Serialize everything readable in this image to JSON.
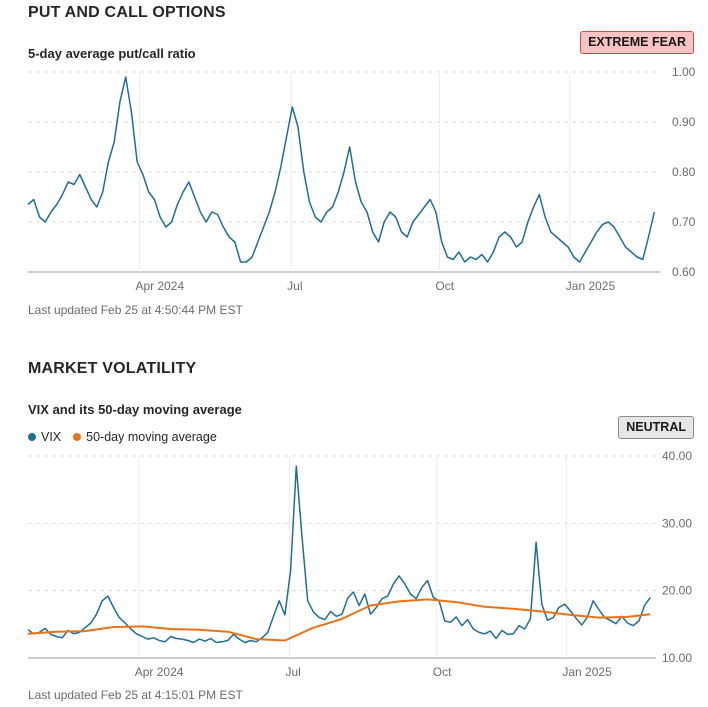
{
  "put_call": {
    "section_title": "PUT AND CALL OPTIONS",
    "subtitle": "5-day average put/call ratio",
    "badge": "EXTREME FEAR",
    "updated": "Last updated Feb 25 at 4:50:44 PM EST"
  },
  "volatility": {
    "section_title": "MARKET VOLATILITY",
    "subtitle": "VIX and its 50-day moving average",
    "badge": "NEUTRAL",
    "legend": {
      "vix": "VIX",
      "ma": "50-day moving average"
    },
    "updated": "Last updated Feb 25 at 4:15:01 PM EST"
  },
  "colors": {
    "vix": "#1f6e94",
    "ma": "#ec7217",
    "fear": "#f8c3c3",
    "neutral": "#e6e6e6"
  },
  "chart_data": [
    {
      "type": "line",
      "title": "5-day average put/call ratio",
      "x_tick_labels": [
        "Apr 2024",
        "Jul",
        "Oct",
        "Jan 2025"
      ],
      "x_tick_pos": [
        19.4,
        45.8,
        71.6,
        94.3
      ],
      "y_ticks": [
        "0.60",
        "0.70",
        "0.80",
        "0.90",
        "1.00"
      ],
      "ylim": [
        0.6,
        1.0
      ],
      "xlim": [
        0,
        110
      ],
      "series": [
        {
          "name": "5-day average put/call ratio",
          "color": "#1f6e94",
          "x": [
            0,
            1,
            2,
            3,
            4,
            5,
            6,
            7,
            8,
            9,
            10,
            11,
            12,
            13,
            14,
            15,
            16,
            17,
            18,
            19,
            20,
            21,
            22,
            23,
            24,
            25,
            26,
            27,
            28,
            29,
            30,
            31,
            32,
            33,
            34,
            35,
            36,
            37,
            38,
            39,
            40,
            41,
            42,
            43,
            44,
            45,
            46,
            47,
            48,
            49,
            50,
            51,
            52,
            53,
            54,
            55,
            56,
            57,
            58,
            59,
            60,
            61,
            62,
            63,
            64,
            65,
            66,
            67,
            68,
            69,
            70,
            71,
            72,
            73,
            74,
            75,
            76,
            77,
            78,
            79,
            80,
            81,
            82,
            83,
            84,
            85,
            86,
            87,
            88,
            89,
            90,
            91,
            92,
            93,
            94,
            95,
            96,
            97,
            98,
            99,
            100,
            101,
            102,
            103,
            104,
            105,
            106,
            107,
            108,
            109
          ],
          "y": [
            0.735,
            0.745,
            0.71,
            0.7,
            0.72,
            0.735,
            0.755,
            0.78,
            0.775,
            0.795,
            0.77,
            0.745,
            0.73,
            0.76,
            0.82,
            0.86,
            0.94,
            0.99,
            0.92,
            0.82,
            0.795,
            0.76,
            0.745,
            0.71,
            0.69,
            0.7,
            0.735,
            0.76,
            0.78,
            0.75,
            0.72,
            0.7,
            0.72,
            0.715,
            0.69,
            0.67,
            0.66,
            0.62,
            0.62,
            0.63,
            0.66,
            0.69,
            0.72,
            0.76,
            0.81,
            0.87,
            0.93,
            0.89,
            0.8,
            0.74,
            0.71,
            0.7,
            0.72,
            0.73,
            0.76,
            0.8,
            0.85,
            0.78,
            0.74,
            0.72,
            0.68,
            0.66,
            0.7,
            0.72,
            0.71,
            0.68,
            0.67,
            0.7,
            0.715,
            0.73,
            0.745,
            0.72,
            0.66,
            0.63,
            0.625,
            0.64,
            0.62,
            0.63,
            0.625,
            0.635,
            0.62,
            0.64,
            0.67,
            0.68,
            0.67,
            0.65,
            0.66,
            0.7,
            0.73,
            0.755,
            0.71,
            0.68,
            0.67,
            0.66,
            0.65,
            0.63,
            0.62,
            0.64,
            0.66,
            0.68,
            0.695,
            0.7,
            0.69,
            0.67,
            0.65,
            0.64,
            0.63,
            0.625,
            0.67,
            0.72
          ]
        }
      ]
    },
    {
      "type": "line",
      "title": "VIX and its 50-day moving average",
      "x_tick_labels": [
        "Apr 2024",
        "Jul",
        "Oct",
        "Jan 2025"
      ],
      "x_tick_pos": [
        19.4,
        45.8,
        71.6,
        94.3
      ],
      "y_ticks": [
        "10.00",
        "20.00",
        "30.00",
        "40.00"
      ],
      "ylim": [
        10,
        40
      ],
      "xlim": [
        0,
        110
      ],
      "series": [
        {
          "name": "VIX",
          "color": "#1f6e94",
          "x": [
            0,
            1,
            2,
            3,
            4,
            5,
            6,
            7,
            8,
            9,
            10,
            11,
            12,
            13,
            14,
            15,
            16,
            17,
            18,
            19,
            20,
            21,
            22,
            23,
            24,
            25,
            26,
            27,
            28,
            29,
            30,
            31,
            32,
            33,
            34,
            35,
            36,
            37,
            38,
            39,
            40,
            41,
            42,
            43,
            44,
            45,
            46,
            47,
            48,
            49,
            50,
            51,
            52,
            53,
            54,
            55,
            56,
            57,
            58,
            59,
            60,
            61,
            62,
            63,
            64,
            65,
            66,
            67,
            68,
            69,
            70,
            71,
            72,
            73,
            74,
            75,
            76,
            77,
            78,
            79,
            80,
            81,
            82,
            83,
            84,
            85,
            86,
            87,
            88,
            89,
            90,
            91,
            92,
            93,
            94,
            95,
            96,
            97,
            98,
            99,
            100,
            101,
            102,
            103,
            104,
            105,
            106,
            107,
            108,
            109
          ],
          "y": [
            14.2,
            13.6,
            13.8,
            14.4,
            13.5,
            13.2,
            13.0,
            14.1,
            13.6,
            13.8,
            14.5,
            15.2,
            16.5,
            18.5,
            19.2,
            17.5,
            16.0,
            15.2,
            14.3,
            13.6,
            13.2,
            12.8,
            13.0,
            12.6,
            12.4,
            13.2,
            12.9,
            12.8,
            12.6,
            12.3,
            12.8,
            12.5,
            12.9,
            12.3,
            12.4,
            12.6,
            13.5,
            12.8,
            12.3,
            12.6,
            12.4,
            13.0,
            13.8,
            16.2,
            18.5,
            16.4,
            23.0,
            38.5,
            28.0,
            18.5,
            16.8,
            16.0,
            15.7,
            16.9,
            16.2,
            16.5,
            18.9,
            19.8,
            17.8,
            19.5,
            16.5,
            17.5,
            18.8,
            19.2,
            21.0,
            22.2,
            21.0,
            19.5,
            18.8,
            20.5,
            21.5,
            19.0,
            18.5,
            15.5,
            15.3,
            16.1,
            14.8,
            15.7,
            14.3,
            13.8,
            13.6,
            14.0,
            12.9,
            14.1,
            13.5,
            13.6,
            14.8,
            14.3,
            15.8,
            27.2,
            18.0,
            15.6,
            16.0,
            17.5,
            18.0,
            17.0,
            15.9,
            14.9,
            16.1,
            18.5,
            17.2,
            16.0,
            15.6,
            15.1,
            16.2,
            15.2,
            14.8,
            15.5,
            17.8,
            19.0
          ]
        },
        {
          "name": "50-day moving average",
          "color": "#ec7217",
          "x": [
            0,
            5,
            10,
            15,
            20,
            25,
            30,
            35,
            40,
            45,
            50,
            55,
            60,
            65,
            70,
            75,
            80,
            85,
            90,
            95,
            100,
            105,
            109
          ],
          "y": [
            13.6,
            13.9,
            14.0,
            14.6,
            14.7,
            14.3,
            14.2,
            13.9,
            12.8,
            12.6,
            14.5,
            15.8,
            17.8,
            18.4,
            18.7,
            18.3,
            17.6,
            17.3,
            16.9,
            16.4,
            16.0,
            16.1,
            16.5
          ]
        }
      ]
    }
  ]
}
